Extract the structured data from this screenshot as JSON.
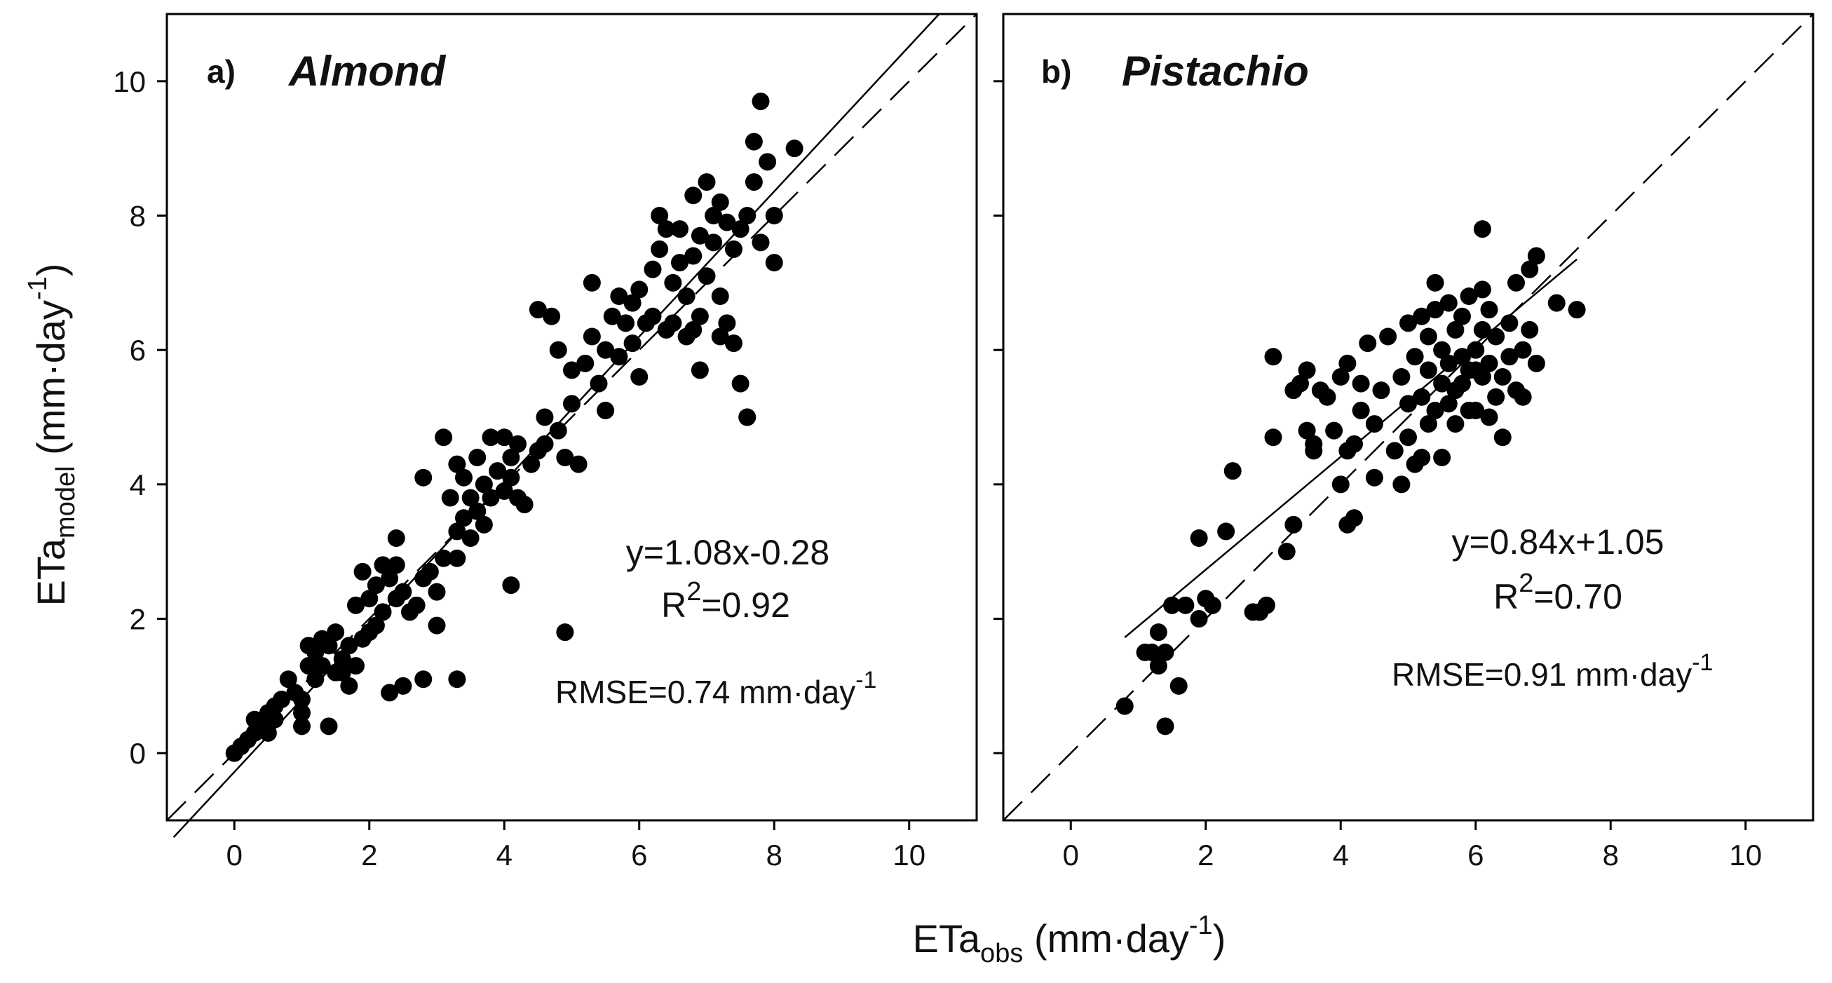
{
  "chart_data": [
    {
      "type": "scatter",
      "panel": "a)",
      "title": "Almond",
      "xlim": [
        -1,
        11
      ],
      "ylim": [
        -1,
        11
      ],
      "xticks": [
        "0",
        "2",
        "4",
        "6",
        "8",
        "10"
      ],
      "yticks": [
        "0",
        "2",
        "4",
        "6",
        "8",
        "10"
      ],
      "annotations": {
        "equation": "y=1.08x-0.28",
        "r2_prefix": "R",
        "r2_exp": "2",
        "r2_value": "=0.92",
        "rmse_text": "RMSE=0.74 mm·day",
        "rmse_exp": "-1"
      },
      "fit": {
        "slope": 1.08,
        "intercept": -0.28
      },
      "one_to_one": true,
      "x": [
        0.0,
        0.1,
        0.2,
        0.3,
        0.3,
        0.4,
        0.5,
        0.5,
        0.6,
        0.6,
        0.7,
        0.8,
        0.9,
        1.0,
        1.0,
        1.1,
        1.1,
        1.2,
        1.2,
        1.3,
        1.3,
        1.4,
        1.4,
        1.5,
        1.5,
        1.6,
        1.7,
        1.7,
        1.8,
        1.8,
        1.9,
        1.9,
        2.0,
        2.0,
        2.1,
        2.1,
        2.2,
        2.2,
        2.3,
        2.3,
        2.4,
        2.4,
        2.5,
        2.5,
        2.6,
        2.7,
        2.8,
        2.8,
        2.9,
        3.0,
        3.0,
        3.1,
        3.1,
        3.2,
        3.3,
        3.3,
        3.4,
        3.4,
        3.5,
        3.5,
        3.6,
        3.6,
        3.7,
        3.7,
        3.8,
        3.8,
        3.9,
        4.0,
        4.0,
        4.1,
        4.1,
        4.2,
        4.2,
        4.3,
        4.4,
        4.5,
        4.5,
        4.6,
        4.6,
        4.7,
        4.8,
        4.8,
        4.9,
        5.0,
        5.0,
        5.1,
        5.2,
        5.3,
        5.3,
        5.4,
        5.5,
        5.5,
        5.6,
        5.7,
        5.7,
        5.8,
        5.9,
        5.9,
        6.0,
        6.0,
        6.1,
        6.2,
        6.2,
        6.3,
        6.3,
        6.4,
        6.4,
        6.5,
        6.5,
        6.6,
        6.6,
        6.7,
        6.7,
        6.8,
        6.8,
        6.9,
        6.9,
        7.0,
        7.0,
        7.1,
        7.1,
        7.2,
        7.2,
        7.3,
        7.3,
        7.4,
        7.4,
        7.5,
        7.5,
        7.6,
        7.6,
        7.7,
        7.7,
        7.8,
        7.8,
        7.9,
        8.0,
        8.0,
        8.3,
        4.9,
        3.3,
        4.1,
        6.9,
        7.2,
        7.6,
        6.8,
        3.3,
        2.8,
        2.4,
        1.6,
        1.0
      ],
      "y": [
        0.0,
        0.1,
        0.2,
        0.5,
        0.3,
        0.4,
        0.6,
        0.3,
        0.5,
        0.7,
        0.8,
        1.1,
        0.9,
        0.4,
        0.8,
        1.6,
        1.3,
        1.1,
        1.5,
        1.3,
        1.7,
        0.4,
        1.6,
        1.2,
        1.8,
        1.4,
        1.0,
        1.6,
        2.2,
        1.3,
        2.7,
        1.7,
        2.3,
        1.8,
        2.5,
        1.9,
        2.1,
        2.8,
        2.6,
        0.9,
        2.8,
        2.3,
        1.0,
        2.4,
        2.1,
        2.2,
        2.6,
        4.1,
        2.7,
        1.9,
        2.4,
        4.7,
        2.9,
        3.8,
        3.3,
        4.3,
        3.5,
        4.1,
        3.2,
        3.8,
        3.6,
        4.4,
        3.4,
        4.0,
        4.7,
        3.8,
        4.2,
        4.7,
        3.9,
        4.4,
        4.1,
        3.8,
        4.6,
        3.7,
        4.3,
        4.5,
        6.6,
        5.0,
        4.6,
        6.5,
        6.0,
        4.8,
        4.4,
        5.7,
        5.2,
        4.3,
        5.8,
        6.2,
        7.0,
        5.5,
        6.0,
        5.1,
        6.5,
        6.8,
        5.9,
        6.4,
        6.1,
        6.7,
        5.6,
        6.9,
        6.4,
        7.2,
        6.5,
        7.5,
        8.0,
        6.3,
        7.8,
        7.0,
        6.4,
        7.3,
        7.8,
        6.8,
        6.2,
        8.3,
        7.4,
        7.7,
        6.5,
        8.5,
        7.1,
        8.0,
        7.6,
        8.2,
        6.8,
        7.9,
        6.4,
        7.5,
        6.1,
        7.8,
        5.5,
        8.0,
        5.0,
        9.1,
        8.5,
        9.7,
        7.6,
        8.8,
        7.3,
        8.0,
        9.0,
        1.8,
        1.1,
        2.5,
        5.7,
        6.2,
        5.0,
        6.3,
        2.9,
        1.1,
        3.2,
        1.2,
        0.6
      ]
    },
    {
      "type": "scatter",
      "panel": "b)",
      "title": "Pistachio",
      "xlim": [
        -1,
        11
      ],
      "ylim": [
        -1,
        11
      ],
      "xticks": [
        "0",
        "2",
        "4",
        "6",
        "8",
        "10"
      ],
      "yticks": [
        "0",
        "2",
        "4",
        "6",
        "8",
        "10"
      ],
      "annotations": {
        "equation": "y=0.84x+1.05",
        "r2_prefix": "R",
        "r2_exp": "2",
        "r2_value": "=0.70",
        "rmse_text": "RMSE=0.91 mm·day",
        "rmse_exp": "-1"
      },
      "fit": {
        "slope": 0.84,
        "intercept": 1.05
      },
      "one_to_one": true,
      "x": [
        0.8,
        1.1,
        1.2,
        1.3,
        1.3,
        1.4,
        1.4,
        1.5,
        1.6,
        1.7,
        1.9,
        1.9,
        2.0,
        2.1,
        2.3,
        2.4,
        2.7,
        2.8,
        2.9,
        3.0,
        3.0,
        3.2,
        3.3,
        3.3,
        3.4,
        3.5,
        3.5,
        3.6,
        3.7,
        3.8,
        3.9,
        4.0,
        4.0,
        4.1,
        4.1,
        4.1,
        4.2,
        4.3,
        4.3,
        4.4,
        4.5,
        4.5,
        4.6,
        4.7,
        4.8,
        4.9,
        4.9,
        5.0,
        5.0,
        5.0,
        5.1,
        5.1,
        5.2,
        5.2,
        5.2,
        5.3,
        5.3,
        5.3,
        5.4,
        5.4,
        5.5,
        5.5,
        5.5,
        5.6,
        5.6,
        5.6,
        5.7,
        5.7,
        5.7,
        5.8,
        5.8,
        5.8,
        5.9,
        5.9,
        5.9,
        6.0,
        6.0,
        6.0,
        6.1,
        6.1,
        6.1,
        6.2,
        6.2,
        6.2,
        6.3,
        6.3,
        6.4,
        6.4,
        6.5,
        6.5,
        6.6,
        6.6,
        6.7,
        6.7,
        6.8,
        6.8,
        6.9,
        6.9,
        7.2,
        7.5,
        6.1,
        5.4,
        4.2,
        3.6,
        2.8
      ],
      "y": [
        0.7,
        1.5,
        1.5,
        1.3,
        1.8,
        0.4,
        1.5,
        2.2,
        1.0,
        2.2,
        3.2,
        2.0,
        2.3,
        2.2,
        3.3,
        4.2,
        2.1,
        2.1,
        2.2,
        4.7,
        5.9,
        3.0,
        5.4,
        3.4,
        5.5,
        4.8,
        5.7,
        4.5,
        5.4,
        5.3,
        4.8,
        4.0,
        5.6,
        3.4,
        5.8,
        4.5,
        3.5,
        5.1,
        5.5,
        6.1,
        4.9,
        4.1,
        5.4,
        6.2,
        4.5,
        5.6,
        4.0,
        6.4,
        4.7,
        5.2,
        4.3,
        5.9,
        5.3,
        6.5,
        4.4,
        5.7,
        4.9,
        6.2,
        5.1,
        7.0,
        5.5,
        6.0,
        4.4,
        5.8,
        6.7,
        5.2,
        5.4,
        6.3,
        4.9,
        5.9,
        5.5,
        6.5,
        5.1,
        6.8,
        5.7,
        5.7,
        6.0,
        5.1,
        6.3,
        5.6,
        7.8,
        5.0,
        6.6,
        5.8,
        5.3,
        6.2,
        4.7,
        5.6,
        6.4,
        5.9,
        5.4,
        7.0,
        6.0,
        5.3,
        7.2,
        6.3,
        5.8,
        7.4,
        6.7,
        6.6,
        6.9,
        6.6,
        4.6,
        4.6,
        2.1
      ]
    }
  ],
  "axes": {
    "ylabel_main": "ETa",
    "ylabel_sub": "model",
    "ylabel_unit": " (mm·day",
    "ylabel_exp": "-1",
    "ylabel_close": ")",
    "xlabel_main": "ETa",
    "xlabel_sub": "obs",
    "xlabel_unit": " (mm·day",
    "xlabel_exp": "-1",
    "xlabel_close": ")"
  },
  "colors": {
    "points": "#000000",
    "lines": "#000000",
    "frame": "#000000",
    "background": "#ffffff"
  }
}
